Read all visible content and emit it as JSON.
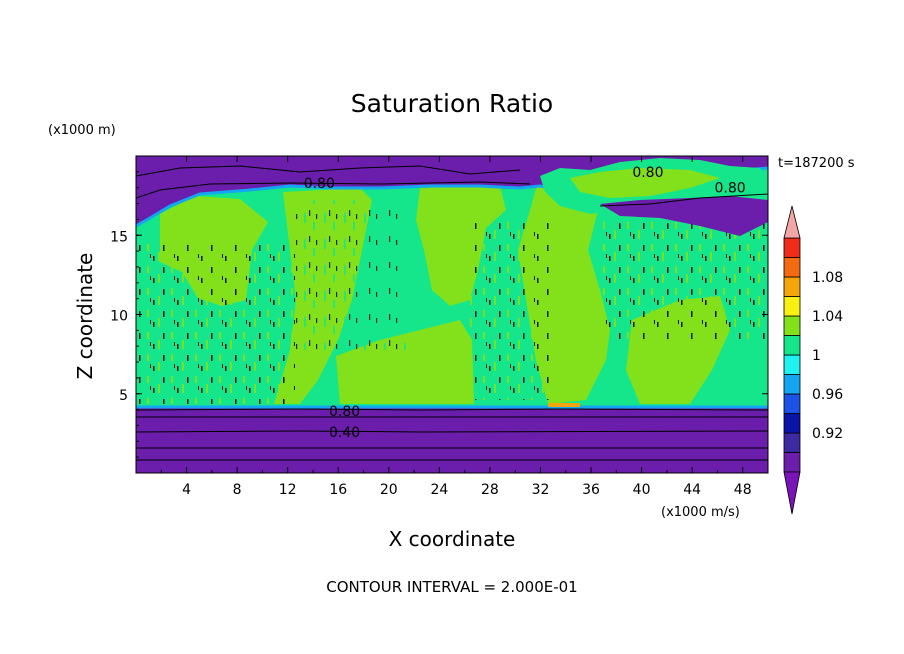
{
  "chart_data": {
    "type": "heatmap",
    "title": "Saturation Ratio",
    "xlabel": "X coordinate",
    "ylabel": "Z coordinate",
    "x_units": "(x1000 m/s)",
    "y_units": "(x1000 m)",
    "time_label": "t=187200 s",
    "footer": "CONTOUR INTERVAL = 2.000E-01",
    "xlim": [
      0,
      50
    ],
    "ylim": [
      0,
      20
    ],
    "x_ticks": [
      "4",
      "8",
      "12",
      "16",
      "20",
      "24",
      "28",
      "32",
      "36",
      "40",
      "44",
      "48"
    ],
    "y_ticks": [
      "5",
      "10",
      "15"
    ],
    "contour_labels": [
      {
        "text": "0.80",
        "x": 14.5,
        "y": 18.3
      },
      {
        "text": "0.80",
        "x": 40.5,
        "y": 19.0
      },
      {
        "text": "0.80",
        "x": 47.0,
        "y": 18.0
      },
      {
        "text": "0.80",
        "x": 16.5,
        "y": 3.9
      },
      {
        "text": "0.40",
        "x": 16.5,
        "y": 2.6
      }
    ],
    "colorbar": {
      "levels": [
        0.88,
        0.9,
        0.92,
        0.94,
        0.96,
        0.98,
        1.0,
        1.02,
        1.04,
        1.06,
        1.08,
        1.1,
        1.12
      ],
      "labels": [
        "0.92",
        "0.96",
        "1",
        "1.04",
        "1.08"
      ],
      "colors": [
        "#6a1eab",
        "#3d2aa3",
        "#0a14a8",
        "#1c52e6",
        "#14a6f0",
        "#1ff1f1",
        "#16e68b",
        "#82e11a",
        "#f7f012",
        "#f5a50c",
        "#f36a12",
        "#f12b1a",
        "#f2a6a6"
      ],
      "under_color": "#7b14b8"
    },
    "field_regions": [
      {
        "name": "lower dry layer",
        "x": [
          0,
          50
        ],
        "y": [
          0,
          4.2
        ],
        "value": "< 0.88"
      },
      {
        "name": "mid-level moist layer",
        "x": [
          0,
          50
        ],
        "y": [
          4.2,
          16
        ],
        "value": "0.98 - 1.02"
      },
      {
        "name": "upper dry layer",
        "x": [
          0,
          50
        ],
        "y": [
          17.5,
          20
        ],
        "value": "< 0.88"
      },
      {
        "name": "supersaturated patch",
        "x": [
          32.5,
          35
        ],
        "y": [
          4.2,
          4.4
        ],
        "value": "1.04 - 1.06"
      }
    ]
  }
}
